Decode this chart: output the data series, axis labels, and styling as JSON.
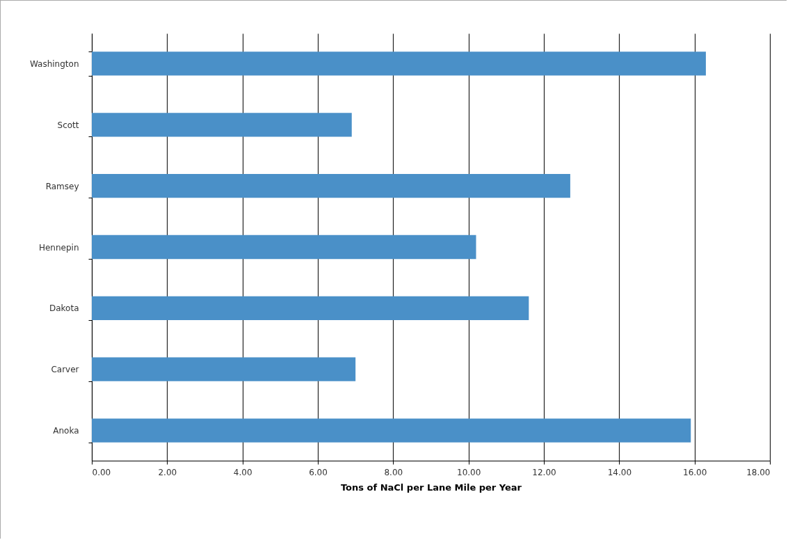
{
  "chart_data": {
    "type": "bar",
    "orientation": "horizontal",
    "xlabel": "Tons of NaCl per Lane Mile per Year",
    "categories": [
      "Washington",
      "Scott",
      "Ramsey",
      "Hennepin",
      "Dakota",
      "Carver",
      "Anoka"
    ],
    "values": [
      16.3,
      6.9,
      12.7,
      10.2,
      11.6,
      7.0,
      15.9
    ],
    "color": "#4a90c8",
    "xlim": [
      0,
      18
    ],
    "xticks": [
      {
        "value": 0,
        "label": "0.00"
      },
      {
        "value": 2,
        "label": "2.00"
      },
      {
        "value": 4,
        "label": "4.00"
      },
      {
        "value": 6,
        "label": "6.00"
      },
      {
        "value": 8,
        "label": "8.00"
      },
      {
        "value": 10,
        "label": "10.00"
      },
      {
        "value": 12,
        "label": "12.00"
      },
      {
        "value": 14,
        "label": "14.00"
      },
      {
        "value": 16,
        "label": "16.00"
      },
      {
        "value": 18,
        "label": "18.00"
      }
    ],
    "grid": "x"
  }
}
